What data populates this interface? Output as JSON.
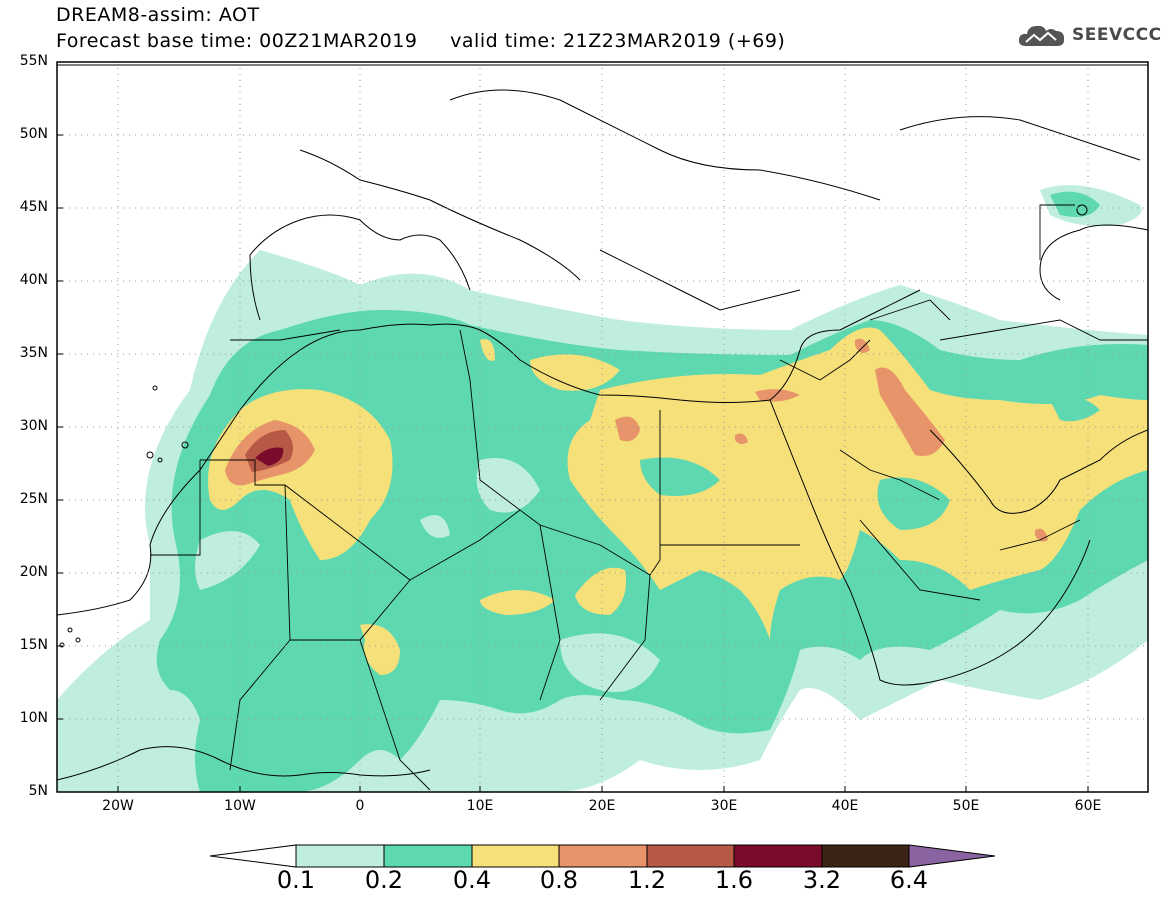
{
  "header": {
    "title_line1": "DREAM8-assim: AOT",
    "title_line2": "Forecast base time: 00Z21MAR2019     valid time: 21Z23MAR2019 (+69)",
    "logo_text": "SEEVCCC"
  },
  "map": {
    "lat_labels": [
      "55N",
      "50N",
      "45N",
      "40N",
      "35N",
      "30N",
      "25N",
      "20N",
      "15N",
      "10N",
      "5N"
    ],
    "lon_labels": [
      "20W",
      "10W",
      "0",
      "10E",
      "20E",
      "30E",
      "40E",
      "50E",
      "60E"
    ],
    "lat_range": [
      5,
      55
    ],
    "lon_range": [
      -25,
      65
    ]
  },
  "colorbar": {
    "labels": [
      "0.1",
      "0.2",
      "0.4",
      "0.8",
      "1.2",
      "1.6",
      "3.2",
      "6.4"
    ],
    "colors": [
      "#ffffff",
      "#bfeee0",
      "#5ed8b0",
      "#f5e07a",
      "#e8946a",
      "#b75a45",
      "#7a0b2a",
      "#3b2415",
      "#8a64a0"
    ]
  },
  "colors": {
    "c1": "#bfeee0",
    "c2": "#5ed8b0",
    "c3": "#f5e07a",
    "c4": "#e8946a",
    "c5": "#b75a45",
    "c6": "#7a0b2a"
  }
}
